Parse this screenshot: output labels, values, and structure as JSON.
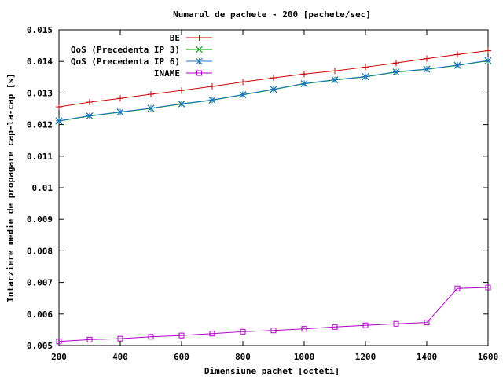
{
  "chart_data": {
    "type": "line",
    "title": "Numarul de pachete - 200 [pachete/sec]",
    "xlabel": "Dimensiune pachet [octeti]",
    "ylabel": "Intarziere medie de propagare cap-la-cap [s]",
    "xlim": [
      200,
      1600
    ],
    "ylim": [
      0.005,
      0.015
    ],
    "x_ticks": [
      "200",
      "400",
      "600",
      "800",
      "1000",
      "1200",
      "1400",
      "1600"
    ],
    "y_ticks": [
      "0.005",
      "0.006",
      "0.007",
      "0.008",
      "0.009",
      "0.01",
      "0.011",
      "0.012",
      "0.013",
      "0.014",
      "0.015"
    ],
    "grid": false,
    "legend_position": "top-left",
    "x": [
      200,
      300,
      400,
      500,
      600,
      700,
      800,
      900,
      1000,
      1100,
      1200,
      1300,
      1400,
      1500,
      1600
    ],
    "series": [
      {
        "name": "BE",
        "color": "#cc0000",
        "marker": "plus",
        "values": [
          0.01256,
          0.01271,
          0.01283,
          0.01296,
          0.01308,
          0.01321,
          0.01335,
          0.01348,
          0.0136,
          0.0137,
          0.01382,
          0.01395,
          0.01409,
          0.01422,
          0.01434
        ]
      },
      {
        "name": "QoS (Precedenta IP 3)",
        "color": "#00a000",
        "marker": "cross",
        "values": [
          0.01211,
          0.01227,
          0.01239,
          0.01251,
          0.01265,
          0.01277,
          0.01294,
          0.01311,
          0.01329,
          0.01341,
          0.01351,
          0.01366,
          0.01375,
          0.01387,
          0.01402
        ]
      },
      {
        "name": "QoS (Precedenta IP 6)",
        "color": "#1e74c8",
        "marker": "star",
        "values": [
          0.01212,
          0.01228,
          0.0124,
          0.01252,
          0.01266,
          0.01278,
          0.01295,
          0.01312,
          0.0133,
          0.01342,
          0.01352,
          0.01367,
          0.01376,
          0.01388,
          0.01403
        ]
      },
      {
        "name": "INAME",
        "color": "#b000c8",
        "marker": "square",
        "values": [
          0.00513,
          0.00519,
          0.00522,
          0.00528,
          0.00532,
          0.00538,
          0.00544,
          0.00548,
          0.00553,
          0.00559,
          0.00564,
          0.00569,
          0.00573,
          0.00681,
          0.00684
        ]
      }
    ]
  }
}
